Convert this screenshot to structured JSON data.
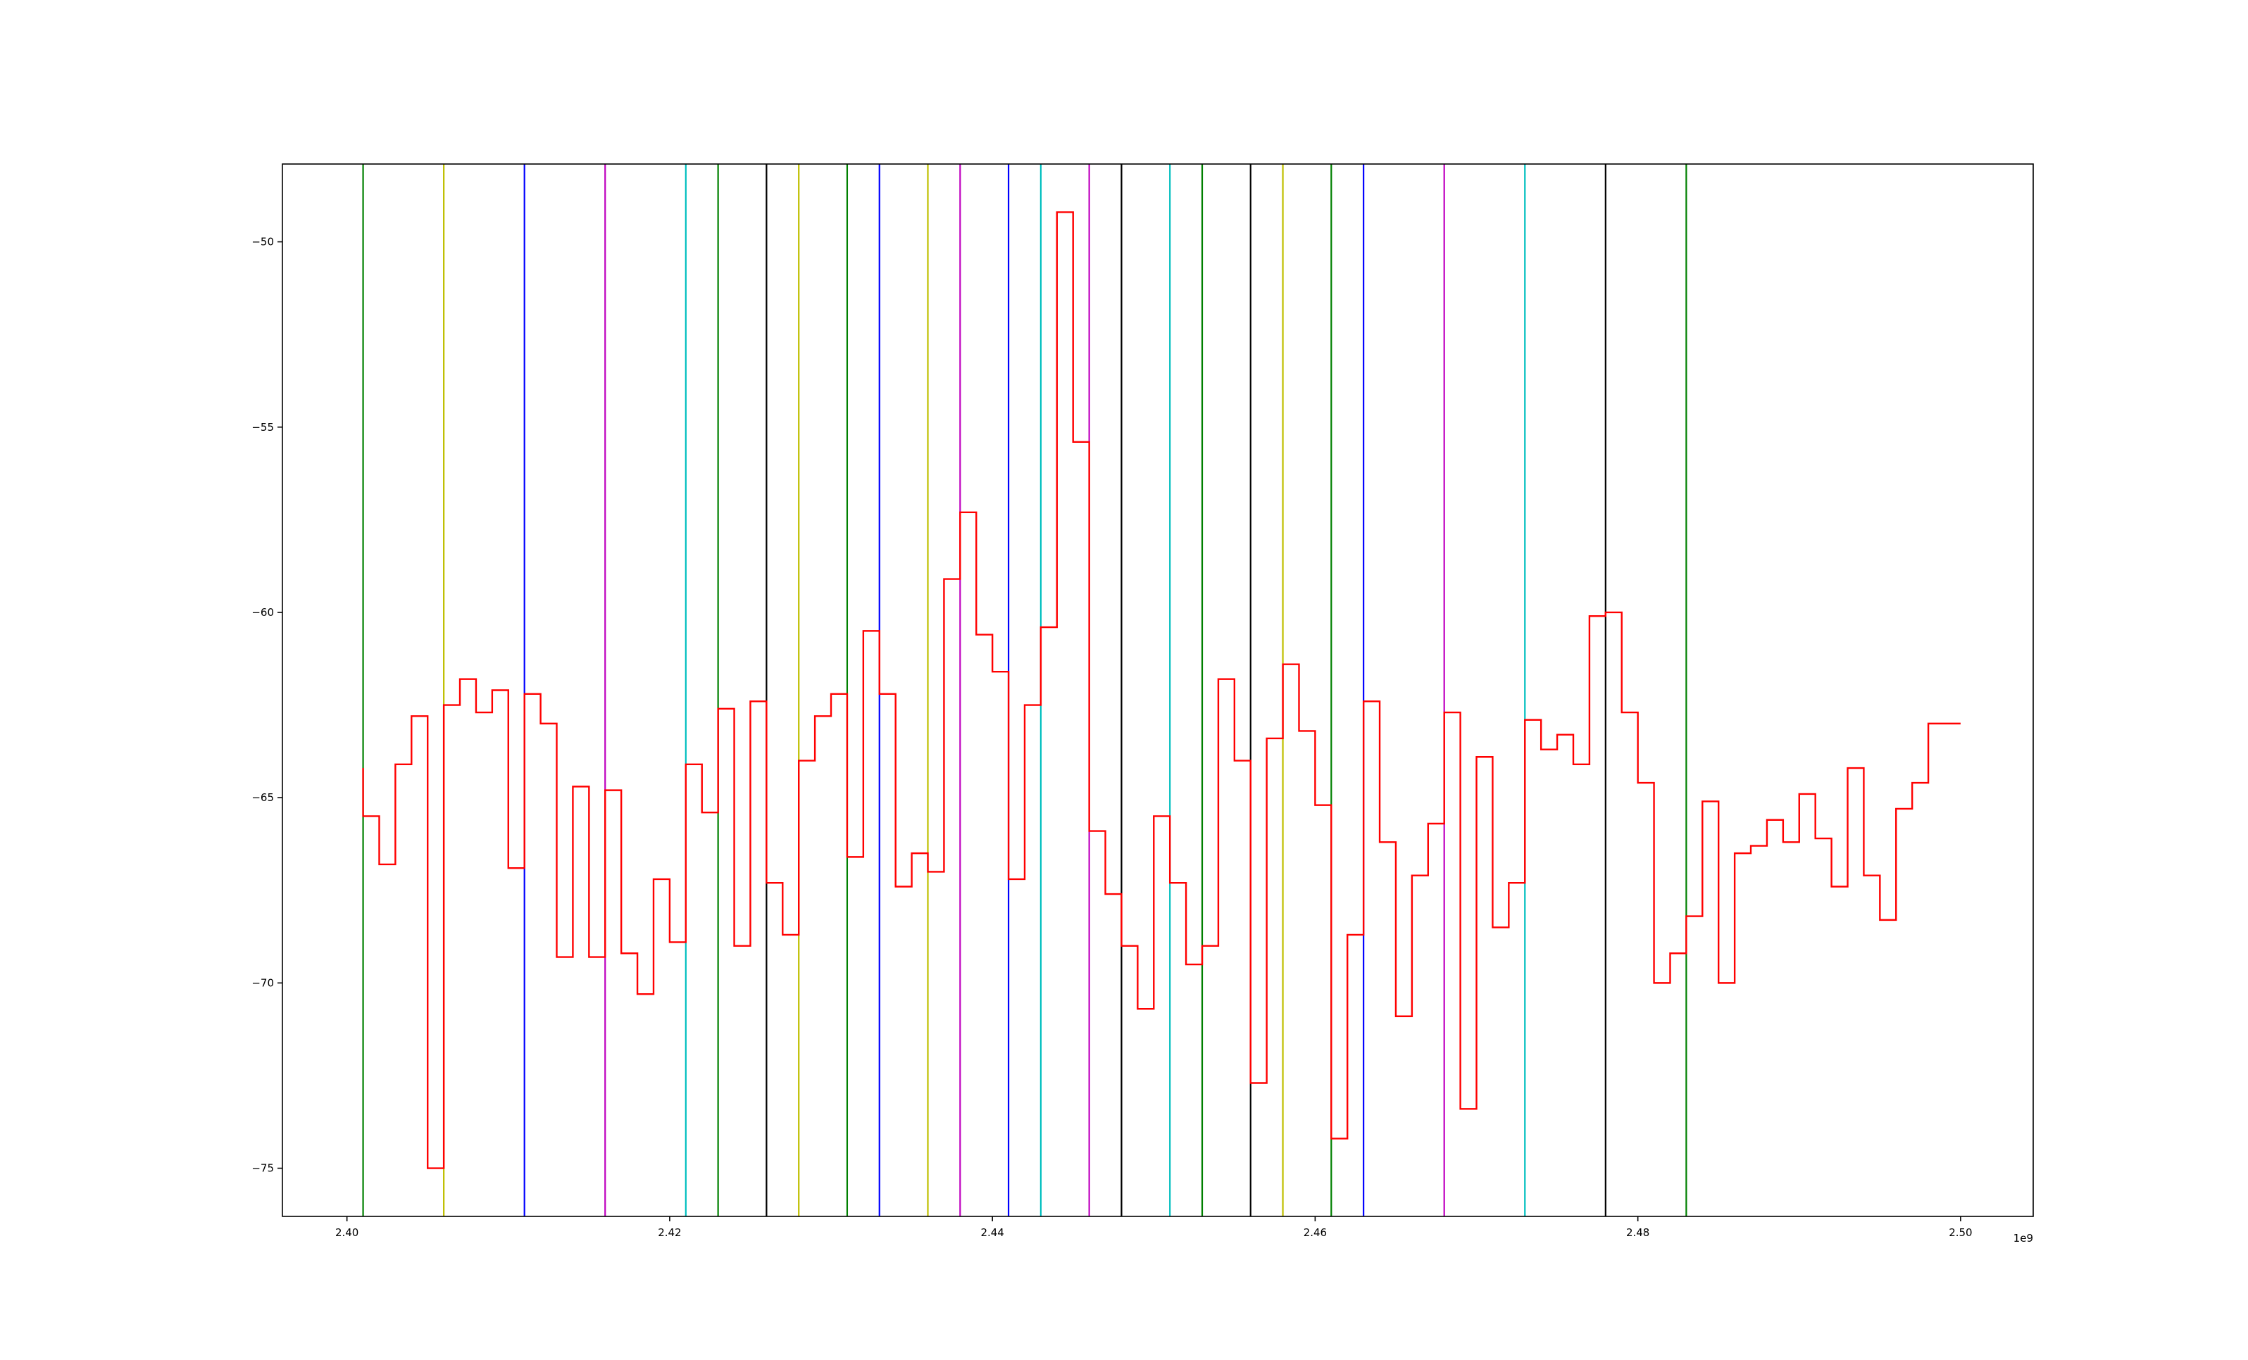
{
  "chart_data": {
    "type": "line",
    "line_style": "step",
    "title": "",
    "xlabel": "",
    "ylabel": "",
    "xlim": [
      2396000000.0,
      2504500000.0
    ],
    "ylim": [
      -76.3,
      -47.9
    ],
    "x_offset_label": "1e9",
    "x_ticks": [
      {
        "value": 2400000000.0,
        "label": "2.40"
      },
      {
        "value": 2420000000.0,
        "label": "2.42"
      },
      {
        "value": 2440000000.0,
        "label": "2.44"
      },
      {
        "value": 2460000000.0,
        "label": "2.46"
      },
      {
        "value": 2480000000.0,
        "label": "2.48"
      },
      {
        "value": 2500000000.0,
        "label": "2.50"
      }
    ],
    "y_ticks": [
      {
        "value": -50,
        "label": "−50"
      },
      {
        "value": -55,
        "label": "−55"
      },
      {
        "value": -60,
        "label": "−60"
      },
      {
        "value": -65,
        "label": "−65"
      },
      {
        "value": -70,
        "label": "−70"
      },
      {
        "value": -75,
        "label": "−75"
      }
    ],
    "grid": false,
    "legend": "none",
    "series": [
      {
        "color": "#ff0000",
        "x": [
          2401000000.0,
          2402000000.0,
          2403000000.0,
          2404000000.0,
          2405000000.0,
          2406000000.0,
          2407000000.0,
          2408000000.0,
          2409000000.0,
          2410000000.0,
          2411000000.0,
          2412000000.0,
          2413000000.0,
          2414000000.0,
          2415000000.0,
          2416000000.0,
          2417000000.0,
          2418000000.0,
          2419000000.0,
          2420000000.0,
          2421000000.0,
          2422000000.0,
          2423000000.0,
          2424000000.0,
          2425000000.0,
          2426000000.0,
          2427000000.0,
          2428000000.0,
          2429000000.0,
          2430000000.0,
          2431000000.0,
          2432000000.0,
          2433000000.0,
          2434000000.0,
          2435000000.0,
          2436000000.0,
          2437000000.0,
          2438000000.0,
          2439000000.0,
          2440000000.0,
          2441000000.0,
          2442000000.0,
          2443000000.0,
          2444000000.0,
          2445000000.0,
          2446000000.0,
          2447000000.0,
          2448000000.0,
          2449000000.0,
          2450000000.0,
          2451000000.0,
          2452000000.0,
          2453000000.0,
          2454000000.0,
          2455000000.0,
          2456000000.0,
          2457000000.0,
          2458000000.0,
          2459000000.0,
          2460000000.0,
          2461000000.0,
          2462000000.0,
          2463000000.0,
          2464000000.0,
          2465000000.0,
          2466000000.0,
          2467000000.0,
          2468000000.0,
          2469000000.0,
          2470000000.0,
          2471000000.0,
          2472000000.0,
          2473000000.0,
          2474000000.0,
          2475000000.0,
          2476000000.0,
          2477000000.0,
          2478000000.0,
          2479000000.0,
          2480000000.0,
          2481000000.0,
          2482000000.0,
          2483000000.0,
          2484000000.0,
          2485000000.0,
          2486000000.0,
          2487000000.0,
          2488000000.0,
          2489000000.0,
          2490000000.0,
          2491000000.0,
          2492000000.0,
          2493000000.0,
          2494000000.0,
          2495000000.0,
          2496000000.0,
          2497000000.0,
          2498000000.0,
          2499000000.0,
          2500000000.0
        ],
        "y": [
          -64.2,
          -65.5,
          -66.8,
          -64.1,
          -62.8,
          -75.0,
          -62.5,
          -61.8,
          -62.7,
          -62.1,
          -66.9,
          -62.2,
          -63.0,
          -69.3,
          -64.7,
          -69.3,
          -64.8,
          -69.2,
          -70.3,
          -67.2,
          -68.9,
          -64.1,
          -65.4,
          -62.6,
          -69.0,
          -62.4,
          -67.3,
          -68.7,
          -64.0,
          -62.8,
          -62.2,
          -66.6,
          -60.5,
          -62.2,
          -67.4,
          -66.5,
          -67.0,
          -59.1,
          -57.3,
          -60.6,
          -61.6,
          -67.2,
          -62.5,
          -60.4,
          -49.2,
          -55.4,
          -65.9,
          -67.6,
          -69.0,
          -70.7,
          -65.5,
          -67.3,
          -69.5,
          -69.0,
          -61.8,
          -64.0,
          -72.7,
          -63.4,
          -61.4,
          -63.2,
          -65.2,
          -74.2,
          -68.7,
          -62.4,
          -66.2,
          -70.9,
          -67.1,
          -65.7,
          -62.7,
          -73.4,
          -63.9,
          -68.5,
          -67.3,
          -62.9,
          -63.7,
          -63.3,
          -64.1,
          -60.1,
          -60.0,
          -62.7,
          -64.6,
          -70.0,
          -69.2,
          -68.2,
          -65.1,
          -70.0,
          -66.5,
          -66.3,
          -65.6,
          -66.2,
          -64.9,
          -66.1,
          -67.4,
          -64.2,
          -67.1,
          -68.3,
          -65.3,
          -64.6,
          -63.0,
          -63.0
        ]
      }
    ],
    "vertical_lines": [
      {
        "x": 2401000000.0,
        "color": "#008000"
      },
      {
        "x": 2406000000.0,
        "color": "#bfbf00"
      },
      {
        "x": 2411000000.0,
        "color": "#0000ff"
      },
      {
        "x": 2416000000.0,
        "color": "#bf00bf"
      },
      {
        "x": 2421000000.0,
        "color": "#00bfbf"
      },
      {
        "x": 2423000000.0,
        "color": "#008000"
      },
      {
        "x": 2426000000.0,
        "color": "#000000"
      },
      {
        "x": 2428000000.0,
        "color": "#bfbf00"
      },
      {
        "x": 2431000000.0,
        "color": "#008000"
      },
      {
        "x": 2433000000.0,
        "color": "#0000ff"
      },
      {
        "x": 2436000000.0,
        "color": "#bfbf00"
      },
      {
        "x": 2438000000.0,
        "color": "#bf00bf"
      },
      {
        "x": 2441000000.0,
        "color": "#0000ff"
      },
      {
        "x": 2443000000.0,
        "color": "#00bfbf"
      },
      {
        "x": 2446000000.0,
        "color": "#bf00bf"
      },
      {
        "x": 2448000000.0,
        "color": "#000000"
      },
      {
        "x": 2451000000.0,
        "color": "#00bfbf"
      },
      {
        "x": 2453000000.0,
        "color": "#008000"
      },
      {
        "x": 2456000000.0,
        "color": "#000000"
      },
      {
        "x": 2458000000.0,
        "color": "#bfbf00"
      },
      {
        "x": 2461000000.0,
        "color": "#008000"
      },
      {
        "x": 2463000000.0,
        "color": "#0000ff"
      },
      {
        "x": 2468000000.0,
        "color": "#bf00bf"
      },
      {
        "x": 2473000000.0,
        "color": "#00bfbf"
      },
      {
        "x": 2478000000.0,
        "color": "#000000"
      },
      {
        "x": 2483000000.0,
        "color": "#008000"
      }
    ]
  }
}
